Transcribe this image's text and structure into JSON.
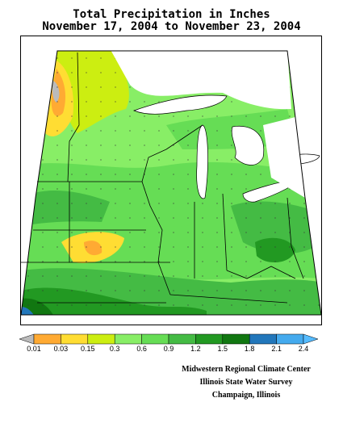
{
  "title": {
    "line1": "Total Precipitation in Inches",
    "line2": "November 17, 2004 to November 23, 2004"
  },
  "legend": {
    "colors": [
      "#bbbbbb",
      "#ffaa33",
      "#ffdd33",
      "#ccee11",
      "#88ee66",
      "#66dd55",
      "#44bb44",
      "#229922",
      "#117711",
      "#2277bb",
      "#44aaee",
      "#55bbff"
    ],
    "labels": [
      "0.01",
      "0.03",
      "0.15",
      "0.3",
      "0.6",
      "0.9",
      "1.2",
      "1.5",
      "1.8",
      "2.1",
      "2.4"
    ]
  },
  "credits": {
    "line1": "Midwestern Regional Climate Center",
    "line2": "Illinois State Water Survey",
    "line3": "Champaign, Illinois"
  },
  "map": {
    "region": "Midwest",
    "zones": [
      {
        "name": "minnesota-northwest",
        "color": "#ccee11"
      },
      {
        "name": "minnesota-west-dry",
        "color": "#ffdd33"
      },
      {
        "name": "minnesota-west-driest",
        "color": "#ffaa33"
      },
      {
        "name": "trace",
        "color": "#bbbbbb"
      },
      {
        "name": "kansas-dry",
        "color": "#ffdd33"
      },
      {
        "name": "kansas-driest",
        "color": "#ffaa33"
      },
      {
        "name": "wet-south",
        "color": "#229922"
      },
      {
        "name": "wettest-southwest",
        "color": "#2277bb"
      }
    ]
  }
}
